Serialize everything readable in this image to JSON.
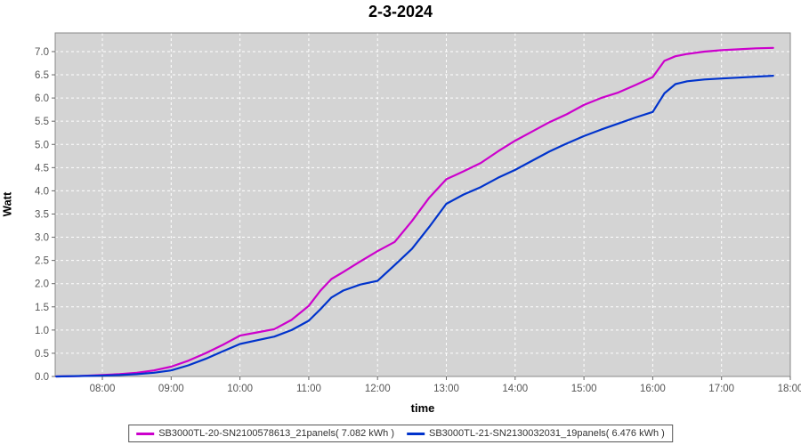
{
  "chart_data": {
    "type": "line",
    "title": "2-3-2024",
    "xlabel": "time",
    "ylabel": "Watt",
    "xlim": [
      7.314,
      18.0
    ],
    "ylim": [
      0,
      7.402
    ],
    "grid": "on",
    "legend_position": "bottom-center",
    "plot_bg_color": "#d4d4d4",
    "grid_color": "#ffffff",
    "tick_label_color": "#555555",
    "axis_line_color": "#888888",
    "x_ticks": [
      {
        "t": 8,
        "label": "08:00"
      },
      {
        "t": 9,
        "label": "09:00"
      },
      {
        "t": 10,
        "label": "10:00"
      },
      {
        "t": 11,
        "label": "11:00"
      },
      {
        "t": 12,
        "label": "12:00"
      },
      {
        "t": 13,
        "label": "13:00"
      },
      {
        "t": 14,
        "label": "14:00"
      },
      {
        "t": 15,
        "label": "15:00"
      },
      {
        "t": 16,
        "label": "16:00"
      },
      {
        "t": 17,
        "label": "17:00"
      },
      {
        "t": 18,
        "label": "18:00"
      }
    ],
    "y_ticks": [
      {
        "v": 0.0,
        "label": "0.0"
      },
      {
        "v": 0.5,
        "label": "0.5"
      },
      {
        "v": 1.0,
        "label": "1.0"
      },
      {
        "v": 1.5,
        "label": "1.5"
      },
      {
        "v": 2.0,
        "label": "2.0"
      },
      {
        "v": 2.5,
        "label": "2.5"
      },
      {
        "v": 3.0,
        "label": "3.0"
      },
      {
        "v": 3.5,
        "label": "3.5"
      },
      {
        "v": 4.0,
        "label": "4.0"
      },
      {
        "v": 4.5,
        "label": "4.5"
      },
      {
        "v": 5.0,
        "label": "5.0"
      },
      {
        "v": 5.5,
        "label": "5.5"
      },
      {
        "v": 6.0,
        "label": "6.0"
      },
      {
        "v": 6.5,
        "label": "6.5"
      },
      {
        "v": 7.0,
        "label": "7.0"
      }
    ],
    "x_hours": [
      7.33,
      7.67,
      8.0,
      8.25,
      8.5,
      8.75,
      9.0,
      9.25,
      9.5,
      9.75,
      10.0,
      10.25,
      10.5,
      10.75,
      11.0,
      11.17,
      11.33,
      11.5,
      11.75,
      12.0,
      12.25,
      12.5,
      12.75,
      13.0,
      13.25,
      13.5,
      13.75,
      14.0,
      14.25,
      14.5,
      14.75,
      15.0,
      15.25,
      15.5,
      15.75,
      16.0,
      16.17,
      16.33,
      16.5,
      16.75,
      17.0,
      17.25,
      17.5,
      17.75
    ],
    "series": [
      {
        "name": "SB3000TL-20-SN2100578613_21panels( 7.082 kWh )",
        "color": "#cc00cc",
        "total_kwh": "7.082",
        "values": [
          0.0,
          0.01,
          0.03,
          0.05,
          0.08,
          0.13,
          0.21,
          0.34,
          0.5,
          0.68,
          0.88,
          0.95,
          1.02,
          1.22,
          1.52,
          1.85,
          2.1,
          2.25,
          2.48,
          2.7,
          2.9,
          3.35,
          3.85,
          4.25,
          4.42,
          4.6,
          4.85,
          5.08,
          5.28,
          5.48,
          5.65,
          5.85,
          6.0,
          6.12,
          6.28,
          6.45,
          6.8,
          6.9,
          6.95,
          7.0,
          7.03,
          7.05,
          7.07,
          7.08
        ]
      },
      {
        "name": "SB3000TL-21-SN2130032031_19panels( 6.476 kWh )",
        "color": "#0033cc",
        "total_kwh": "6.476",
        "values": [
          0.0,
          0.01,
          0.02,
          0.03,
          0.05,
          0.08,
          0.13,
          0.24,
          0.38,
          0.54,
          0.7,
          0.78,
          0.86,
          1.0,
          1.2,
          1.45,
          1.7,
          1.85,
          1.98,
          2.06,
          2.4,
          2.75,
          3.22,
          3.72,
          3.92,
          4.08,
          4.28,
          4.45,
          4.65,
          4.85,
          5.02,
          5.18,
          5.32,
          5.45,
          5.58,
          5.7,
          6.1,
          6.3,
          6.36,
          6.4,
          6.42,
          6.44,
          6.46,
          6.48
        ]
      }
    ]
  }
}
